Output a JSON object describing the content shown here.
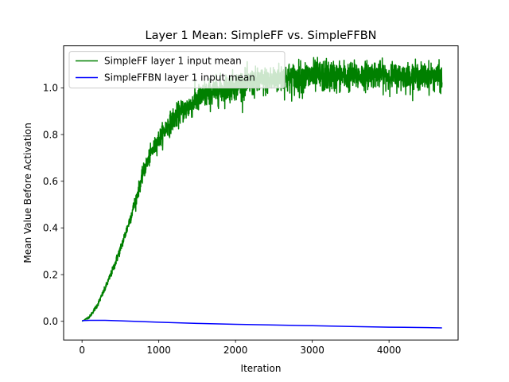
{
  "chart_data": {
    "type": "line",
    "title": "Layer 1 Mean: SimpleFF vs. SimpleFFBN",
    "xlabel": "Iteration",
    "ylabel": "Mean Value Before Activation",
    "xlim": [
      -240,
      4900
    ],
    "ylim": [
      -0.08,
      1.18
    ],
    "xticks": [
      0,
      1000,
      2000,
      3000,
      4000
    ],
    "xtick_labels": [
      "0",
      "1000",
      "2000",
      "3000",
      "4000"
    ],
    "yticks": [
      0.0,
      0.2,
      0.4,
      0.6,
      0.8,
      1.0
    ],
    "ytick_labels": [
      "0.0",
      "0.2",
      "0.4",
      "0.6",
      "0.8",
      "1.0"
    ],
    "grid": false,
    "legend_position": "top-left",
    "series": [
      {
        "name": "SimpleFF layer 1 input mean",
        "color": "#008000",
        "x": [
          0,
          100,
          200,
          300,
          400,
          500,
          600,
          700,
          800,
          900,
          1000,
          1100,
          1200,
          1300,
          1400,
          1500,
          1600,
          1700,
          1800,
          1900,
          2000,
          2200,
          2400,
          2600,
          2800,
          3000,
          3200,
          3400,
          3600,
          3800,
          4000,
          4200,
          4400,
          4600,
          4690
        ],
        "y": [
          0.0,
          0.02,
          0.07,
          0.14,
          0.22,
          0.31,
          0.41,
          0.52,
          0.64,
          0.72,
          0.78,
          0.83,
          0.87,
          0.9,
          0.92,
          0.95,
          0.97,
          0.98,
          0.99,
          1.0,
          1.01,
          1.02,
          1.03,
          1.04,
          1.04,
          1.05,
          1.05,
          1.05,
          1.05,
          1.06,
          1.05,
          1.05,
          1.05,
          1.05,
          1.04
        ],
        "noise_amplitude": [
          0.0,
          0.003,
          0.005,
          0.006,
          0.008,
          0.01,
          0.012,
          0.014,
          0.016,
          0.018,
          0.02,
          0.022,
          0.024,
          0.025,
          0.026,
          0.028,
          0.03,
          0.03,
          0.03,
          0.03,
          0.03,
          0.03,
          0.03,
          0.032,
          0.034,
          0.034,
          0.034,
          0.032,
          0.03,
          0.028,
          0.028,
          0.028,
          0.028,
          0.028,
          0.028
        ]
      },
      {
        "name": "SimpleFFBN layer 1 input mean",
        "color": "#0000ff",
        "x": [
          0,
          100,
          300,
          500,
          1000,
          1500,
          2000,
          2500,
          3000,
          3500,
          4000,
          4500,
          4690
        ],
        "y": [
          0.003,
          0.004,
          0.004,
          0.002,
          -0.004,
          -0.009,
          -0.013,
          -0.016,
          -0.019,
          -0.022,
          -0.025,
          -0.027,
          -0.028
        ]
      }
    ]
  }
}
